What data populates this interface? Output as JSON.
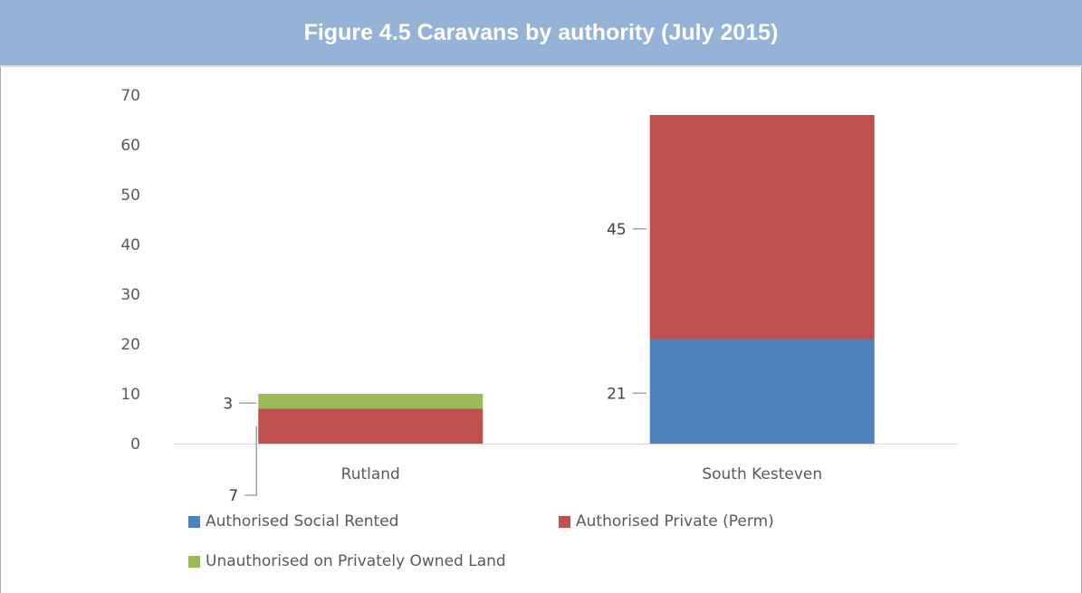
{
  "title": "Figure 4.5 Caravans by authority (July 2015)",
  "colors": {
    "title_bg": "#95b3d7",
    "social": "#4f81bd",
    "private": "#c0504d",
    "unauthorised": "#9bbb59"
  },
  "chart_data": {
    "type": "bar",
    "stacked": true,
    "categories": [
      "Rutland",
      "South Kesteven"
    ],
    "series": [
      {
        "name": "Authorised Social Rented",
        "values": [
          0,
          21
        ],
        "color": "#4f81bd"
      },
      {
        "name": "Authorised Private (Perm)",
        "values": [
          7,
          45
        ],
        "color": "#c0504d"
      },
      {
        "name": "Unauthorised on Privately Owned Land",
        "values": [
          3,
          0
        ],
        "color": "#9bbb59"
      }
    ],
    "data_labels": [
      {
        "category": "Rutland",
        "series": "Unauthorised on Privately Owned Land",
        "text": "3"
      },
      {
        "category": "Rutland",
        "series": "Authorised Private (Perm)",
        "text": "7"
      },
      {
        "category": "South Kesteven",
        "series": "Authorised Private (Perm)",
        "text": "45"
      },
      {
        "category": "South Kesteven",
        "series": "Authorised Social Rented",
        "text": "21"
      }
    ],
    "yticks": [
      "0",
      "10",
      "20",
      "30",
      "40",
      "50",
      "60",
      "70"
    ],
    "ylim": [
      0,
      70
    ],
    "grid": false,
    "legend_position": "bottom"
  }
}
